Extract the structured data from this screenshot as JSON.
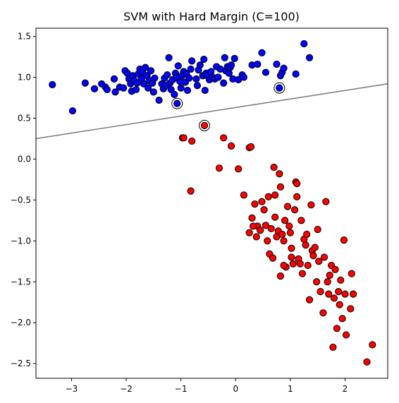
{
  "chart_data": {
    "type": "scatter",
    "title": "SVM with Hard Margin (C=100)",
    "xlabel": "",
    "ylabel": "",
    "xlim": [
      -3.65,
      2.78
    ],
    "ylim": [
      -2.68,
      1.6
    ],
    "xticks": [
      -3,
      -2,
      -1,
      0,
      1,
      2
    ],
    "yticks": [
      -2.5,
      -2.0,
      -1.5,
      -1.0,
      -0.5,
      0.0,
      0.5,
      1.0,
      1.5
    ],
    "grid": false,
    "legend": "none",
    "colors": {
      "class_a": "#0000ff",
      "class_b": "#ff0000",
      "edge": "#000000",
      "boundary": "#808080"
    },
    "decision_boundary": {
      "x": [
        -3.65,
        2.78
      ],
      "y": [
        0.25,
        0.92
      ]
    },
    "support_vectors": [
      [
        -1.07,
        0.68
      ],
      [
        0.8,
        0.87
      ],
      [
        -0.57,
        0.41
      ]
    ],
    "series": [
      {
        "points": [
          [
            -3.35,
            0.91
          ],
          [
            -2.98,
            0.59
          ],
          [
            -2.75,
            0.93
          ],
          [
            -2.58,
            0.86
          ],
          [
            -2.45,
            0.92
          ],
          [
            -2.38,
            0.88
          ],
          [
            -2.35,
            0.85
          ],
          [
            -2.22,
            0.98
          ],
          [
            -2.2,
            0.82
          ],
          [
            -2.12,
            0.88
          ],
          [
            -2.05,
            0.87
          ],
          [
            -2.02,
            1.08
          ],
          [
            -1.98,
            1.05
          ],
          [
            -1.95,
            0.98
          ],
          [
            -1.92,
            0.92
          ],
          [
            -1.9,
            0.83
          ],
          [
            -1.88,
            1.02
          ],
          [
            -1.85,
            0.96
          ],
          [
            -1.82,
            0.85
          ],
          [
            -1.8,
            0.93
          ],
          [
            -1.78,
            1.04
          ],
          [
            -1.75,
            1.1
          ],
          [
            -1.72,
            0.98
          ],
          [
            -1.7,
            1.06
          ],
          [
            -1.68,
            0.92
          ],
          [
            -1.65,
            1.12
          ],
          [
            -1.62,
            1.02
          ],
          [
            -1.6,
            0.87
          ],
          [
            -1.58,
            0.96
          ],
          [
            -1.55,
            1.08
          ],
          [
            -1.52,
            0.93
          ],
          [
            -1.5,
            0.82
          ],
          [
            -1.48,
            0.99
          ],
          [
            -1.4,
            0.72
          ],
          [
            -1.35,
            0.92
          ],
          [
            -1.32,
            0.86
          ],
          [
            -1.3,
            0.99
          ],
          [
            -1.28,
            0.9
          ],
          [
            -1.25,
            1.03
          ],
          [
            -1.22,
            1.24
          ],
          [
            -1.2,
            0.93
          ],
          [
            -1.18,
            0.85
          ],
          [
            -1.15,
            0.97
          ],
          [
            -1.12,
            0.79
          ],
          [
            -1.1,
            1.05
          ],
          [
            -1.08,
            1.0
          ],
          [
            -1.05,
            1.14
          ],
          [
            -1.02,
            0.95
          ],
          [
            -1.0,
            0.87
          ],
          [
            -0.98,
            1.02
          ],
          [
            -0.95,
            1.07
          ],
          [
            -0.92,
            0.94
          ],
          [
            -0.9,
            1.04
          ],
          [
            -0.88,
            0.84
          ],
          [
            -0.85,
            0.99
          ],
          [
            -0.82,
            1.1
          ],
          [
            -0.8,
            1.2
          ],
          [
            -0.72,
            0.98
          ],
          [
            -0.7,
            0.9
          ],
          [
            -0.68,
            1.09
          ],
          [
            -0.65,
            1.15
          ],
          [
            -0.6,
            1.02
          ],
          [
            -0.58,
            1.22
          ],
          [
            -0.56,
            0.84
          ],
          [
            -0.54,
            1.05
          ],
          [
            -0.52,
            1.02
          ],
          [
            -0.48,
            0.97
          ],
          [
            -0.45,
            1.07
          ],
          [
            -0.42,
            1.0
          ],
          [
            -0.38,
            0.98
          ],
          [
            -0.35,
            1.13
          ],
          [
            -0.32,
            1.0
          ],
          [
            -0.28,
            1.1
          ],
          [
            -0.22,
            0.93
          ],
          [
            -0.2,
            1.24
          ],
          [
            -0.18,
            1.08
          ],
          [
            -0.15,
            1.13
          ],
          [
            -0.12,
            1.05
          ],
          [
            -0.1,
            1.12
          ],
          [
            -0.08,
            1.15
          ],
          [
            -0.05,
            0.98
          ],
          [
            -0.02,
            1.23
          ],
          [
            0.05,
            0.97
          ],
          [
            0.12,
            1.03
          ],
          [
            0.15,
            1.0
          ],
          [
            0.3,
            1.15
          ],
          [
            0.4,
            1.16
          ],
          [
            0.48,
            1.3
          ],
          [
            0.55,
            1.06
          ],
          [
            0.75,
            1.16
          ],
          [
            0.82,
            1.02
          ],
          [
            0.85,
            1.06
          ],
          [
            0.88,
            1.11
          ],
          [
            1.1,
            1.04
          ],
          [
            1.25,
            1.41
          ],
          [
            1.35,
            1.24
          ],
          [
            -1.07,
            0.68
          ],
          [
            0.8,
            0.87
          ]
        ]
      },
      {
        "points": [
          [
            -0.97,
            0.26
          ],
          [
            -0.8,
            0.22
          ],
          [
            -0.57,
            0.41
          ],
          [
            -0.3,
            -0.11
          ],
          [
            -0.22,
            0.26
          ],
          [
            -0.08,
            0.16
          ],
          [
            0.05,
            -0.12
          ],
          [
            0.15,
            -0.44
          ],
          [
            0.25,
            0.14
          ],
          [
            0.28,
            0.15
          ],
          [
            0.25,
            -0.9
          ],
          [
            0.3,
            -0.72
          ],
          [
            0.35,
            -0.55
          ],
          [
            0.38,
            -0.95
          ],
          [
            0.4,
            -0.82
          ],
          [
            0.45,
            -0.87
          ],
          [
            0.48,
            -0.52
          ],
          [
            0.52,
            -0.62
          ],
          [
            0.55,
            -0.81
          ],
          [
            0.6,
            -0.46
          ],
          [
            0.62,
            -1.16
          ],
          [
            0.68,
            -1.21
          ],
          [
            0.7,
            -0.1
          ],
          [
            0.72,
            -0.71
          ],
          [
            0.72,
            -0.44
          ],
          [
            0.75,
            -0.95
          ],
          [
            0.78,
            -0.88
          ],
          [
            0.8,
            -0.18
          ],
          [
            0.82,
            -0.34
          ],
          [
            0.82,
            -1.43
          ],
          [
            0.85,
            -0.92
          ],
          [
            0.88,
            -1.0
          ],
          [
            0.9,
            -0.75
          ],
          [
            0.92,
            -1.32
          ],
          [
            0.95,
            -0.58
          ],
          [
            0.98,
            -0.82
          ],
          [
            1.0,
            -0.9
          ],
          [
            1.02,
            -1.09
          ],
          [
            1.05,
            -1.28
          ],
          [
            1.08,
            -0.62
          ],
          [
            1.1,
            -0.28
          ],
          [
            1.12,
            -0.46
          ],
          [
            1.15,
            -1.22
          ],
          [
            1.18,
            -1.28
          ],
          [
            1.2,
            -0.75
          ],
          [
            1.22,
            -1.4
          ],
          [
            1.25,
            -0.98
          ],
          [
            1.28,
            -1.05
          ],
          [
            1.3,
            -0.92
          ],
          [
            1.32,
            -1.3
          ],
          [
            1.35,
            -1.72
          ],
          [
            1.38,
            -0.56
          ],
          [
            1.4,
            -1.12
          ],
          [
            1.42,
            -1.18
          ],
          [
            1.45,
            -1.08
          ],
          [
            1.48,
            -1.5
          ],
          [
            1.5,
            -0.86
          ],
          [
            1.52,
            -1.25
          ],
          [
            1.55,
            -1.62
          ],
          [
            1.6,
            -1.88
          ],
          [
            1.62,
            -1.2
          ],
          [
            1.65,
            -0.52
          ],
          [
            1.68,
            -1.5
          ],
          [
            1.7,
            -1.65
          ],
          [
            1.72,
            -1.42
          ],
          [
            1.75,
            -1.3
          ],
          [
            1.78,
            -2.3
          ],
          [
            1.8,
            -1.7
          ],
          [
            1.82,
            -1.35
          ],
          [
            1.85,
            -2.07
          ],
          [
            1.88,
            -1.62
          ],
          [
            1.9,
            -1.78
          ],
          [
            1.92,
            -1.48
          ],
          [
            1.95,
            -1.95
          ],
          [
            1.98,
            -0.99
          ],
          [
            2.0,
            -1.65
          ],
          [
            2.02,
            -2.15
          ],
          [
            2.1,
            -1.83
          ],
          [
            2.12,
            -1.4
          ],
          [
            2.15,
            -1.65
          ],
          [
            2.4,
            -2.48
          ],
          [
            2.5,
            -2.27
          ],
          [
            -0.82,
            -0.39
          ],
          [
            -0.95,
            0.26
          ],
          [
            1.12,
            -0.3
          ],
          [
            0.32,
            -0.82
          ],
          [
            0.58,
            -1.0
          ],
          [
            0.65,
            -0.85
          ],
          [
            0.88,
            -1.3
          ],
          [
            1.02,
            -1.2
          ]
        ]
      }
    ]
  }
}
